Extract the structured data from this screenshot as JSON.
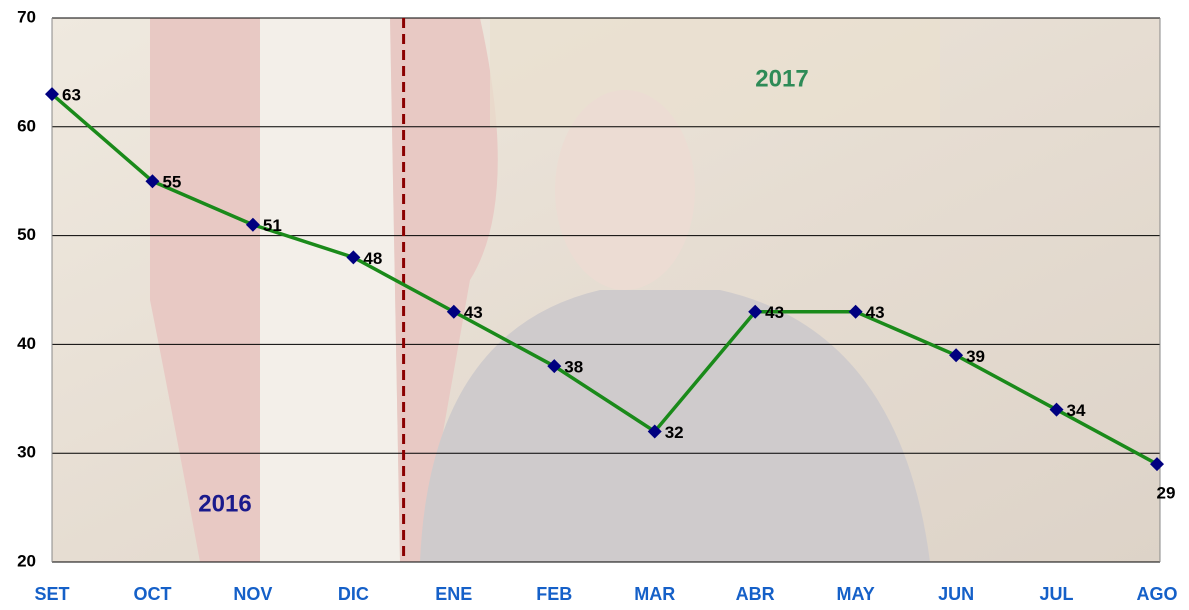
{
  "chart_data": {
    "type": "line",
    "categories": [
      "SET",
      "OCT",
      "NOV",
      "DIC",
      "ENE",
      "FEB",
      "MAR",
      "ABR",
      "MAY",
      "JUN",
      "JUL",
      "AGO"
    ],
    "values": [
      63,
      55,
      51,
      48,
      43,
      38,
      32,
      43,
      43,
      39,
      34,
      29
    ],
    "color": "#1a8a1a",
    "marker_color": "#000080",
    "ylim": [
      20,
      70
    ],
    "yticks": [
      20,
      30,
      40,
      50,
      60,
      70
    ],
    "grid": true,
    "annotations": [
      {
        "text": "2016",
        "color": "#1a1a8c"
      },
      {
        "text": "2017",
        "color": "#2e8b57"
      }
    ]
  }
}
